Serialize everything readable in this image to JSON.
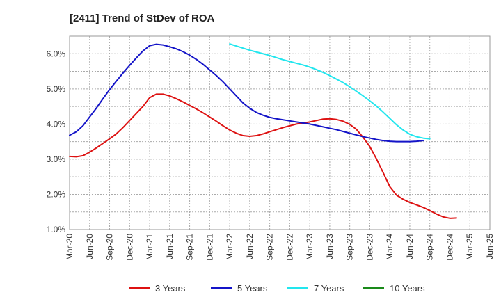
{
  "chart_data": {
    "type": "line",
    "title": "[2411]  Trend of StDev of ROA",
    "xlabel": "",
    "ylabel": "",
    "x_ticks": [
      "Mar-20",
      "Jun-20",
      "Sep-20",
      "Dec-20",
      "Mar-21",
      "Jun-21",
      "Sep-21",
      "Dec-21",
      "Mar-22",
      "Jun-22",
      "Sep-22",
      "Dec-22",
      "Mar-23",
      "Jun-23",
      "Sep-23",
      "Dec-23",
      "Mar-24",
      "Jun-24",
      "Sep-24",
      "Dec-24",
      "Mar-25",
      "Jun-25"
    ],
    "y_ticks": [
      "1.0%",
      "2.0%",
      "3.0%",
      "4.0%",
      "5.0%",
      "6.0%"
    ],
    "ylim": [
      1.0,
      6.5
    ],
    "grid": true,
    "legend_position": "bottom",
    "series": [
      {
        "name": "3 Years",
        "color": "#dd1111",
        "x": [
          "Mar-20",
          "Apr-20",
          "May-20",
          "Jun-20",
          "Jul-20",
          "Aug-20",
          "Sep-20",
          "Oct-20",
          "Nov-20",
          "Dec-20",
          "Jan-21",
          "Feb-21",
          "Mar-21",
          "Apr-21",
          "May-21",
          "Jun-21",
          "Jul-21",
          "Aug-21",
          "Sep-21",
          "Oct-21",
          "Nov-21",
          "Dec-21",
          "Jan-22",
          "Feb-22",
          "Mar-22",
          "Apr-22",
          "May-22",
          "Jun-22",
          "Jul-22",
          "Aug-22",
          "Sep-22",
          "Oct-22",
          "Nov-22",
          "Dec-22",
          "Jan-23",
          "Feb-23",
          "Mar-23",
          "Apr-23",
          "May-23",
          "Jun-23",
          "Jul-23",
          "Aug-23",
          "Sep-23",
          "Oct-23",
          "Nov-23",
          "Dec-23",
          "Jan-24",
          "Feb-24",
          "Mar-24",
          "Apr-24",
          "May-24",
          "Jun-24",
          "Jul-24",
          "Aug-24",
          "Sep-24",
          "Oct-24",
          "Nov-24",
          "Dec-24",
          "Jan-25",
          "Feb-25",
          "Mar-25"
        ],
        "values": [
          3.08,
          3.07,
          3.1,
          3.2,
          3.32,
          3.45,
          3.58,
          3.72,
          3.9,
          4.1,
          4.3,
          4.5,
          4.75,
          4.85,
          4.85,
          4.8,
          4.72,
          4.63,
          4.53,
          4.43,
          4.32,
          4.2,
          4.08,
          3.95,
          3.83,
          3.74,
          3.67,
          3.65,
          3.67,
          3.72,
          3.78,
          3.84,
          3.9,
          3.95,
          4.0,
          4.03,
          4.06,
          4.1,
          4.14,
          4.15,
          4.13,
          4.08,
          3.99,
          3.85,
          3.62,
          3.36,
          3.01,
          2.62,
          2.22,
          1.98,
          1.86,
          1.77,
          1.7,
          1.63,
          1.54,
          1.44,
          1.36,
          1.32,
          1.33,
          null,
          null
        ],
        "x_offset_months": 0
      },
      {
        "name": "5 Years",
        "color": "#1414c8",
        "x": [
          "Mar-20",
          "Apr-20",
          "May-20",
          "Jun-20",
          "Jul-20",
          "Aug-20",
          "Sep-20",
          "Oct-20",
          "Nov-20",
          "Dec-20",
          "Jan-21",
          "Feb-21",
          "Mar-21",
          "Apr-21",
          "May-21",
          "Jun-21",
          "Jul-21",
          "Aug-21",
          "Sep-21",
          "Oct-21",
          "Nov-21",
          "Dec-21",
          "Jan-22",
          "Feb-22",
          "Mar-22",
          "Apr-22",
          "May-22",
          "Jun-22",
          "Jul-22",
          "Aug-22",
          "Sep-22",
          "Oct-22",
          "Nov-22",
          "Dec-22",
          "Jan-23",
          "Feb-23",
          "Mar-23",
          "Apr-23",
          "May-23",
          "Jun-23",
          "Jul-23",
          "Aug-23",
          "Sep-23",
          "Oct-23",
          "Nov-23",
          "Dec-23",
          "Jan-24",
          "Feb-24",
          "Mar-24",
          "Apr-24",
          "May-24",
          "Jun-24",
          "Jul-24",
          "Aug-24",
          "Sep-24",
          "Oct-24",
          "Nov-24",
          "Dec-24",
          "Jan-25",
          "Feb-25",
          "Mar-25"
        ],
        "values": [
          3.68,
          3.78,
          3.95,
          4.2,
          4.45,
          4.72,
          4.98,
          5.22,
          5.45,
          5.67,
          5.88,
          6.08,
          6.23,
          6.27,
          6.25,
          6.2,
          6.14,
          6.06,
          5.96,
          5.84,
          5.7,
          5.54,
          5.38,
          5.2,
          5.0,
          4.8,
          4.6,
          4.45,
          4.33,
          4.25,
          4.19,
          4.15,
          4.12,
          4.09,
          4.06,
          4.03,
          4.0,
          3.96,
          3.92,
          3.88,
          3.84,
          3.79,
          3.74,
          3.69,
          3.64,
          3.6,
          3.56,
          3.53,
          3.51,
          3.5,
          3.5,
          3.5,
          3.51,
          3.53,
          null,
          null,
          null,
          null,
          null,
          null,
          null
        ],
        "x_offset_months": 0
      },
      {
        "name": "7 Years",
        "color": "#22e6ee",
        "x": [
          "Mar-22",
          "Apr-22",
          "May-22",
          "Jun-22",
          "Jul-22",
          "Aug-22",
          "Sep-22",
          "Oct-22",
          "Nov-22",
          "Dec-22",
          "Jan-23",
          "Feb-23",
          "Mar-23",
          "Apr-23",
          "May-23",
          "Jun-23",
          "Jul-23",
          "Aug-23",
          "Sep-23",
          "Oct-23",
          "Nov-23",
          "Dec-23",
          "Jan-24",
          "Feb-24",
          "Mar-24",
          "Apr-24",
          "May-24",
          "Jun-24",
          "Jul-24",
          "Aug-24",
          "Sep-24",
          "Oct-24",
          "Nov-24",
          "Dec-24",
          "Jan-25",
          "Feb-25",
          "Mar-25"
        ],
        "values": [
          6.28,
          6.22,
          6.16,
          6.1,
          6.05,
          6.0,
          5.95,
          5.89,
          5.83,
          5.78,
          5.73,
          5.68,
          5.62,
          5.55,
          5.47,
          5.38,
          5.28,
          5.18,
          5.06,
          4.93,
          4.8,
          4.66,
          4.51,
          4.34,
          4.16,
          3.98,
          3.83,
          3.71,
          3.64,
          3.6,
          3.58,
          null,
          null,
          null,
          null,
          null,
          null
        ],
        "x_offset_months": 24
      },
      {
        "name": "10 Years",
        "color": "#1a8a1a",
        "x": [],
        "values": [],
        "x_offset_months": 0
      }
    ]
  }
}
